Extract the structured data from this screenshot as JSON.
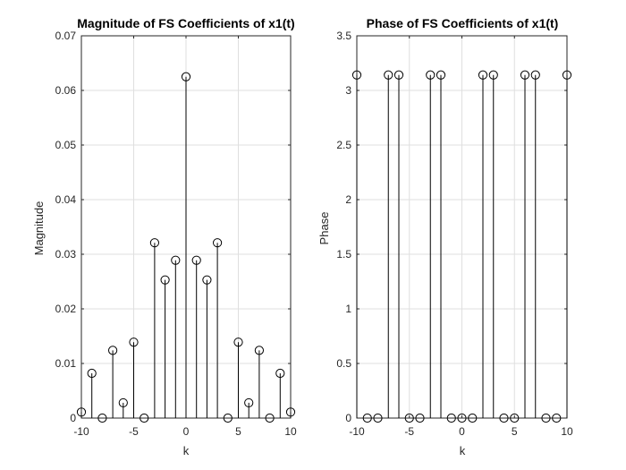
{
  "chart_data": [
    {
      "type": "stem",
      "title": "Magnitude of FS Coefficients of x1(t)",
      "xlabel": "k",
      "ylabel": "Magnitude",
      "xlim": [
        -10,
        10
      ],
      "ylim": [
        0,
        0.07
      ],
      "grid": true,
      "xticks": [
        -10,
        -5,
        0,
        5,
        10
      ],
      "xtick_labels": [
        "-10",
        "-5",
        "0",
        "5",
        "10"
      ],
      "yticks": [
        0,
        0.01,
        0.02,
        0.03,
        0.04,
        0.05,
        0.06,
        0.07
      ],
      "ytick_labels": [
        "0",
        "0.01",
        "0.02",
        "0.03",
        "0.04",
        "0.05",
        "0.06",
        "0.07"
      ],
      "x": [
        -10,
        -9,
        -8,
        -7,
        -6,
        -5,
        -4,
        -3,
        -2,
        -1,
        0,
        1,
        2,
        3,
        4,
        5,
        6,
        7,
        8,
        9,
        10
      ],
      "values": [
        0.0011,
        0.0082,
        0,
        0.0124,
        0.0028,
        0.0139,
        0,
        0.0321,
        0.0253,
        0.0289,
        0.0625,
        0.0289,
        0.0253,
        0.0321,
        0,
        0.0139,
        0.0028,
        0.0124,
        0,
        0.0082,
        0.0011
      ]
    },
    {
      "type": "stem",
      "title": "Phase of FS Coefficients of x1(t)",
      "xlabel": "k",
      "ylabel": "Phase",
      "xlim": [
        -10,
        10
      ],
      "ylim": [
        0,
        3.5
      ],
      "grid": true,
      "xticks": [
        -10,
        -5,
        0,
        5,
        10
      ],
      "xtick_labels": [
        "-10",
        "-5",
        "0",
        "5",
        "10"
      ],
      "yticks": [
        0,
        0.5,
        1,
        1.5,
        2,
        2.5,
        3,
        3.5
      ],
      "ytick_labels": [
        "0",
        "0.5",
        "1",
        "1.5",
        "2",
        "2.5",
        "3",
        "3.5"
      ],
      "x": [
        -10,
        -9,
        -8,
        -7,
        -6,
        -5,
        -4,
        -3,
        -2,
        -1,
        0,
        1,
        2,
        3,
        4,
        5,
        6,
        7,
        8,
        9,
        10
      ],
      "values": [
        3.1416,
        0,
        0,
        3.1416,
        3.1416,
        0,
        0,
        3.1416,
        3.1416,
        0,
        0,
        0,
        3.1416,
        3.1416,
        0,
        0,
        3.1416,
        3.1416,
        0,
        0,
        3.1416
      ]
    }
  ]
}
